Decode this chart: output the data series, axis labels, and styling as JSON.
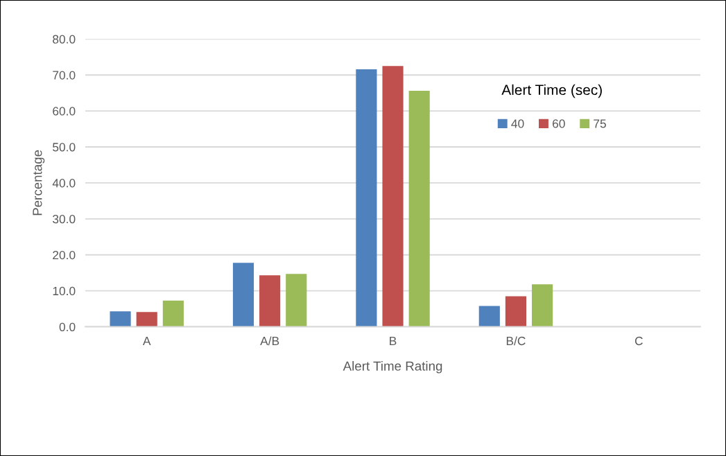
{
  "chart_data": {
    "type": "bar",
    "xlabel": "Alert Time Rating",
    "ylabel": "Percentage",
    "legend_title": "Alert Time (sec)",
    "categories": [
      "A",
      "A/B",
      "B",
      "B/C",
      "C"
    ],
    "series": [
      {
        "name": "40",
        "color": "#4f81bd",
        "values": [
          4.3,
          17.8,
          71.6,
          5.8,
          0
        ]
      },
      {
        "name": "60",
        "color": "#c0504d",
        "values": [
          4.1,
          14.3,
          72.5,
          8.5,
          0
        ]
      },
      {
        "name": "75",
        "color": "#9bbb59",
        "values": [
          7.3,
          14.7,
          65.6,
          11.8,
          0
        ]
      }
    ],
    "ylim": [
      0,
      80
    ],
    "yticks": [
      {
        "value": 0,
        "label": "0.0"
      },
      {
        "value": 10,
        "label": "10.0"
      },
      {
        "value": 20,
        "label": "20.0"
      },
      {
        "value": 30,
        "label": "30.0"
      },
      {
        "value": 40,
        "label": "40.0"
      },
      {
        "value": 50,
        "label": "50.0"
      },
      {
        "value": 60,
        "label": "60.0"
      },
      {
        "value": 70,
        "label": "70.0"
      },
      {
        "value": 80,
        "label": "80.0"
      }
    ],
    "grid": "y",
    "legend": "top right"
  }
}
